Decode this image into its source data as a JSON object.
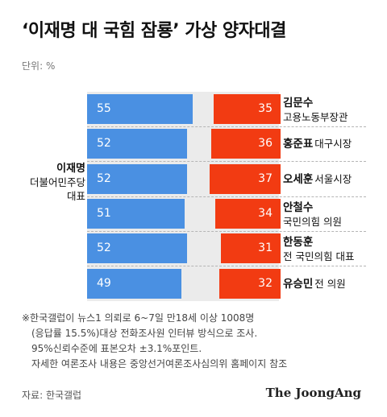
{
  "title": "‘이재명 대 국힘 잠룡’ 가상 양자대결",
  "unit": "단위: %",
  "left_label": {
    "name": "이재명",
    "party": "더불어민주당",
    "role": "대표"
  },
  "colors": {
    "left_bar": "#4a90e2",
    "right_bar": "#f23b12",
    "background_track": "#ebebeb"
  },
  "chart_data": {
    "type": "bar",
    "orientation": "horizontal-diverging",
    "scale_max": 100,
    "rows": [
      {
        "left_value": 55,
        "right_value": 35,
        "name": "김문수",
        "desc": "고용노동부장관",
        "desc_inline": false
      },
      {
        "left_value": 52,
        "right_value": 36,
        "name": "홍준표",
        "desc": "대구시장",
        "desc_inline": true
      },
      {
        "left_value": 52,
        "right_value": 37,
        "name": "오세훈",
        "desc": "서울시장",
        "desc_inline": true
      },
      {
        "left_value": 51,
        "right_value": 34,
        "name": "안철수",
        "desc": "국민의힘 의원",
        "desc_inline": false
      },
      {
        "left_value": 52,
        "right_value": 31,
        "name": "한동훈",
        "desc": "전 국민의힘 대표",
        "desc_inline": false
      },
      {
        "left_value": 49,
        "right_value": 32,
        "name": "유승민",
        "desc": "전 의원",
        "desc_inline": true
      }
    ]
  },
  "notes": [
    "※한국갤럽이 뉴스1 의뢰로 6~7일 만18세 이상 1008명",
    "(응답률 15.5%)대상 전화조사원 인터뷰 방식으로 조사.",
    "95%신뢰수준에 표본오차 ±3.1%포인트.",
    "자세한 여론조사 내용은 중앙선거여론조사심의위 홈페이지 참조"
  ],
  "source": "자료: 한국갤럽",
  "brand": "The JoongAng"
}
